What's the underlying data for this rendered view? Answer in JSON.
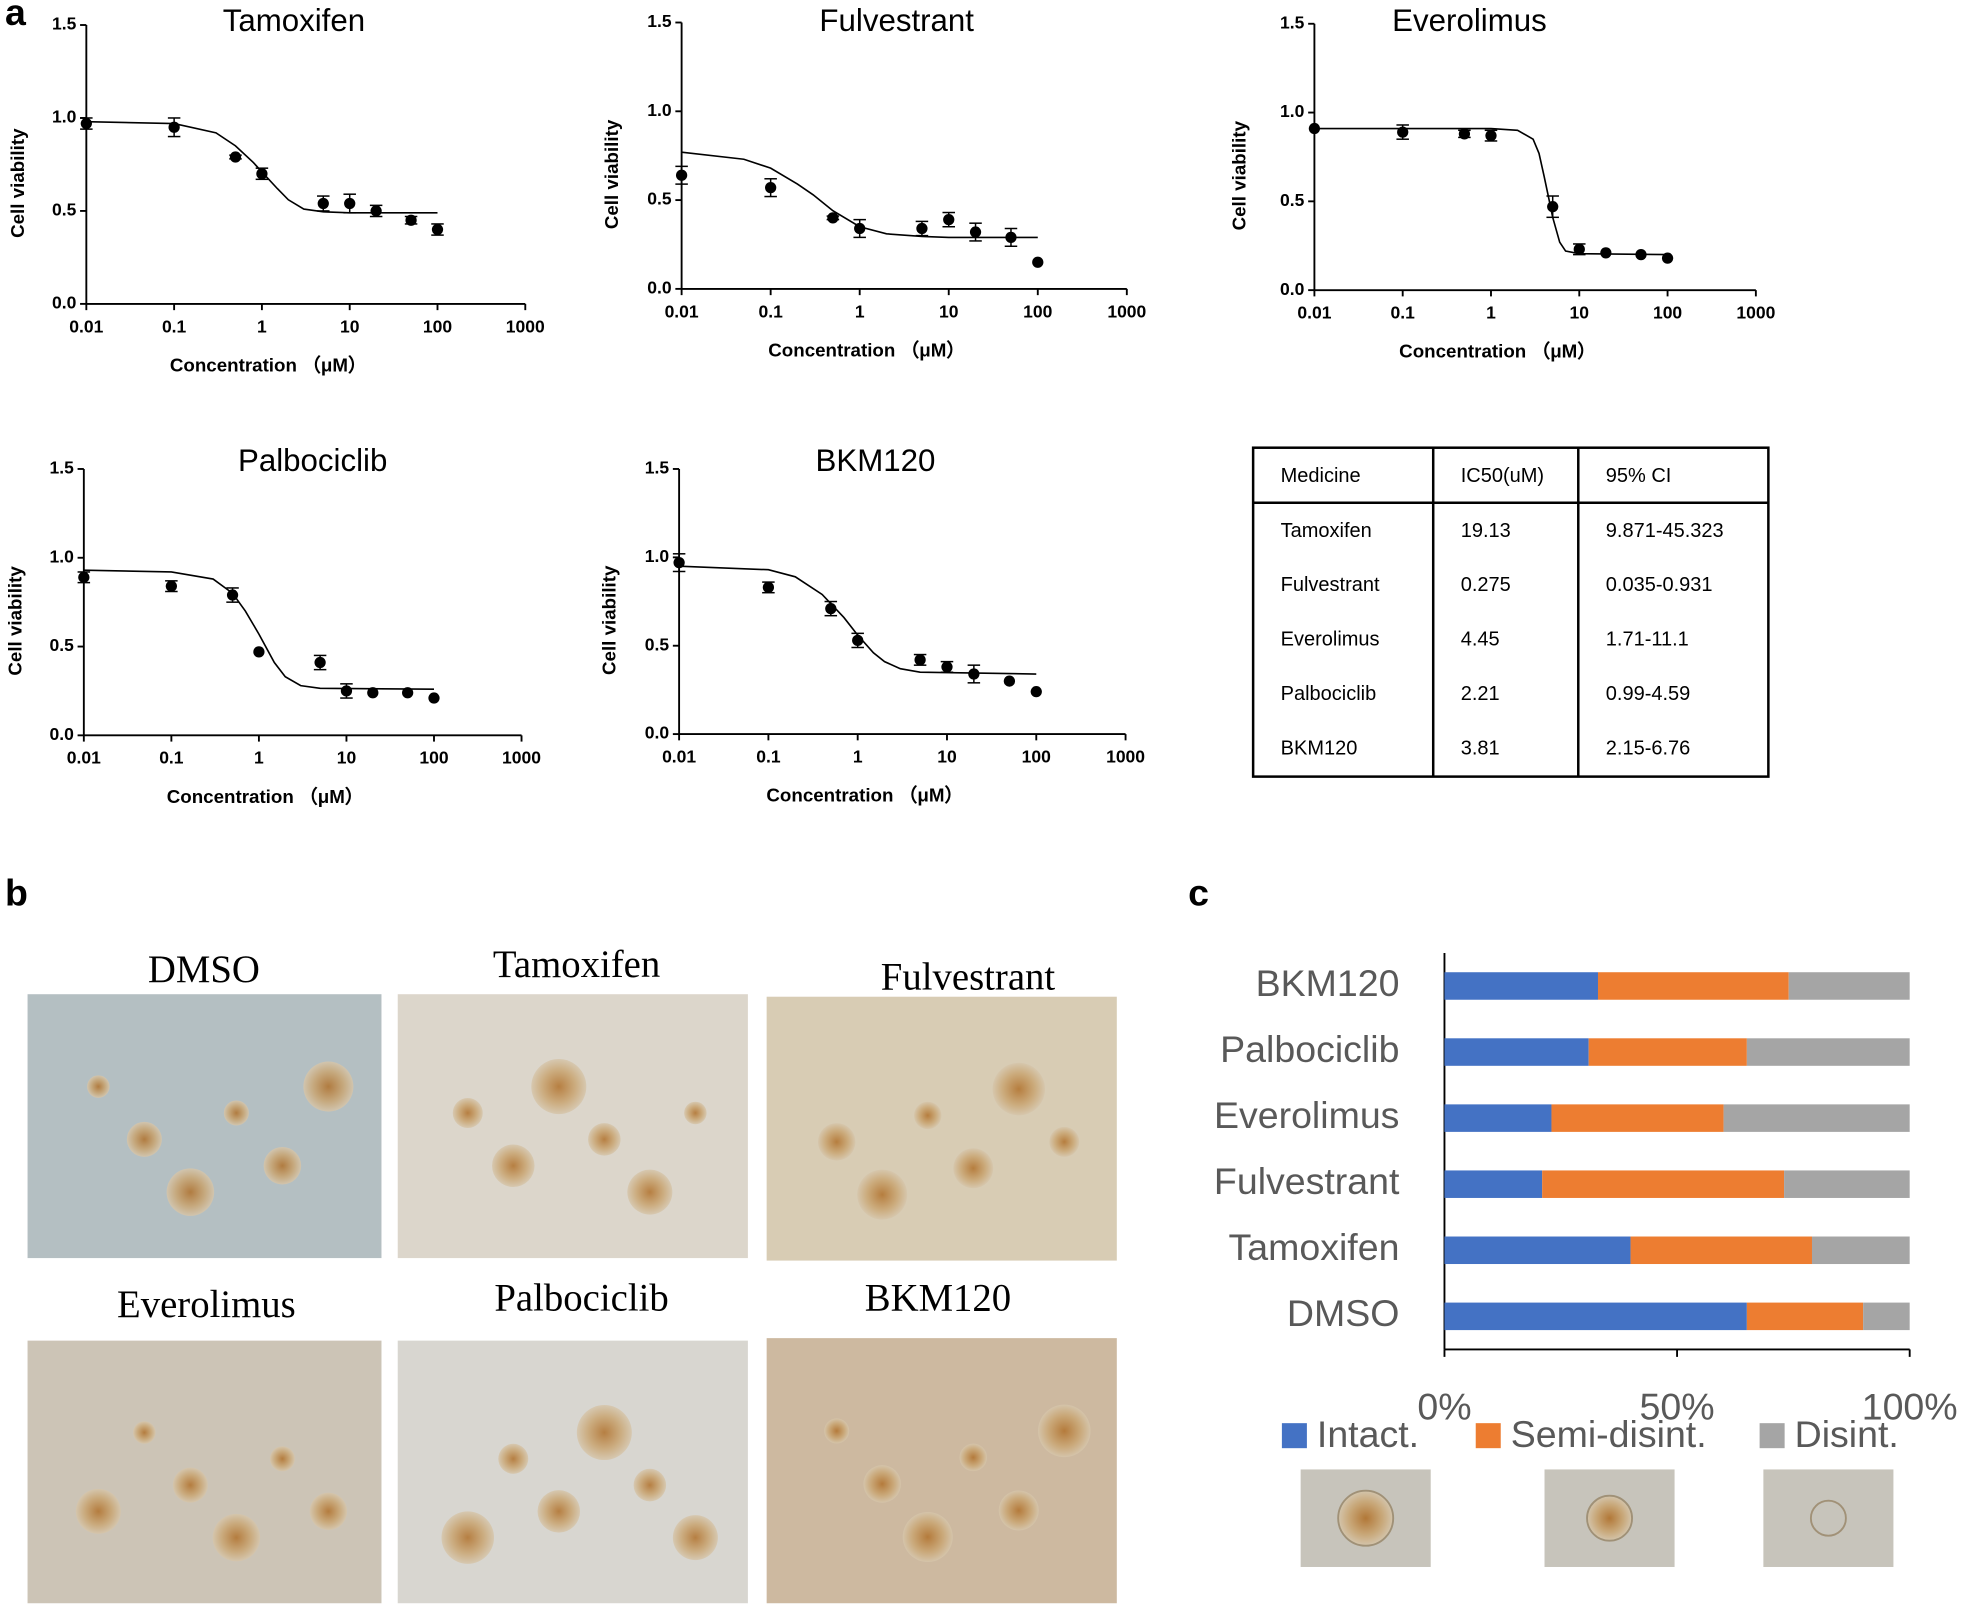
{
  "panels": [
    "a",
    "b",
    "c"
  ],
  "chart_data": [
    {
      "type": "scatter",
      "title": "Tamoxifen",
      "x_label": "Concentration （μM）",
      "y_label": "Cell viability",
      "log_x": true,
      "color": "#000000",
      "x": [
        0.01,
        0.1,
        0.5,
        1,
        5,
        10,
        20,
        50,
        100
      ],
      "values": [
        0.97,
        0.95,
        0.79,
        0.7,
        0.54,
        0.54,
        0.5,
        0.45,
        0.4
      ],
      "errors": [
        0.03,
        0.05,
        0.01,
        0.03,
        0.04,
        0.05,
        0.03,
        0.02,
        0.03
      ],
      "fit": {
        "x": [
          0.01,
          0.1,
          0.3,
          0.5,
          0.8,
          1,
          1.5,
          2,
          3,
          5,
          10,
          100
        ],
        "values": [
          0.98,
          0.97,
          0.92,
          0.85,
          0.76,
          0.71,
          0.62,
          0.56,
          0.51,
          0.495,
          0.49,
          0.49
        ]
      },
      "xlim": [
        0.01,
        1000
      ],
      "xticks": [
        0.01,
        0.1,
        1,
        10,
        100,
        1000
      ],
      "ylim": [
        0,
        1.5
      ],
      "yticks": [
        {
          "value": 0,
          "label": "0.0"
        },
        0.5,
        {
          "value": 1,
          "label": "1.0"
        },
        1.5
      ]
    },
    {
      "type": "scatter",
      "title": "Fulvestrant",
      "x_label": "Concentration （μM）",
      "y_label": "Cell viability",
      "log_x": true,
      "color": "#000000",
      "x": [
        0.01,
        0.1,
        0.5,
        1,
        5,
        10,
        20,
        50,
        100
      ],
      "values": [
        0.64,
        0.57,
        0.4,
        0.34,
        0.34,
        0.39,
        0.32,
        0.29,
        0.15
      ],
      "errors": [
        0.05,
        0.05,
        0.01,
        0.05,
        0.04,
        0.04,
        0.05,
        0.05,
        0
      ],
      "fit": {
        "x": [
          0.01,
          0.05,
          0.1,
          0.2,
          0.3,
          0.5,
          1,
          2,
          5,
          10,
          100
        ],
        "values": [
          0.77,
          0.73,
          0.68,
          0.59,
          0.53,
          0.44,
          0.35,
          0.31,
          0.295,
          0.29,
          0.29
        ]
      },
      "xlim": [
        0.01,
        1000
      ],
      "xticks": [
        0.01,
        0.1,
        1,
        10,
        100,
        1000
      ],
      "ylim": [
        0,
        1.5
      ],
      "yticks": [
        {
          "value": 0,
          "label": "0.0"
        },
        0.5,
        {
          "value": 1,
          "label": "1.0"
        },
        1.5
      ]
    },
    {
      "type": "scatter",
      "title": "Everolimus",
      "x_label": "Concentration （μM）",
      "y_label": "Cell viability",
      "log_x": true,
      "color": "#000000",
      "x": [
        0.01,
        0.1,
        0.5,
        1,
        5,
        10,
        20,
        50,
        100
      ],
      "values": [
        0.91,
        0.89,
        0.88,
        0.87,
        0.47,
        0.23,
        0.21,
        0.2,
        0.18
      ],
      "errors": [
        0,
        0.04,
        0.02,
        0.03,
        0.06,
        0.03,
        0,
        0,
        0
      ],
      "fit": {
        "x": [
          0.01,
          1,
          2,
          3,
          3.5,
          4,
          4.5,
          5,
          6,
          7,
          10,
          100
        ],
        "values": [
          0.91,
          0.91,
          0.9,
          0.85,
          0.77,
          0.64,
          0.52,
          0.41,
          0.27,
          0.22,
          0.205,
          0.2
        ]
      },
      "xlim": [
        0.01,
        1000
      ],
      "xticks": [
        0.01,
        0.1,
        1,
        10,
        100,
        1000
      ],
      "ylim": [
        0,
        1.5
      ],
      "yticks": [
        {
          "value": 0,
          "label": "0.0"
        },
        0.5,
        {
          "value": 1,
          "label": "1.0"
        },
        1.5
      ]
    },
    {
      "type": "scatter",
      "title": "Palbociclib",
      "x_label": "Concentration （μM）",
      "y_label": "Cell viability",
      "log_x": true,
      "color": "#000000",
      "x": [
        0.01,
        0.1,
        0.5,
        1,
        5,
        10,
        20,
        50,
        100
      ],
      "values": [
        0.89,
        0.84,
        0.79,
        0.47,
        0.41,
        0.25,
        0.24,
        0.24,
        0.21
      ],
      "errors": [
        0.03,
        0.03,
        0.04,
        0,
        0.04,
        0.04,
        0,
        0,
        0
      ],
      "fit": {
        "x": [
          0.01,
          0.1,
          0.3,
          0.5,
          0.7,
          1,
          1.5,
          2,
          3,
          5,
          100
        ],
        "values": [
          0.93,
          0.92,
          0.88,
          0.8,
          0.7,
          0.57,
          0.41,
          0.33,
          0.28,
          0.265,
          0.26
        ]
      },
      "xlim": [
        0.01,
        1000
      ],
      "xticks": [
        0.01,
        0.1,
        1,
        10,
        100,
        1000
      ],
      "ylim": [
        0,
        1.5
      ],
      "yticks": [
        {
          "value": 0,
          "label": "0.0"
        },
        0.5,
        {
          "value": 1,
          "label": "1.0"
        },
        1.5
      ]
    },
    {
      "type": "scatter",
      "title": "BKM120",
      "x_label": "Concentration （μM）",
      "y_label": "Cell viability",
      "log_x": true,
      "color": "#000000",
      "x": [
        0.01,
        0.1,
        0.5,
        1,
        5,
        10,
        20,
        50,
        100
      ],
      "values": [
        0.97,
        0.83,
        0.71,
        0.53,
        0.42,
        0.38,
        0.34,
        0.3,
        0.24
      ],
      "errors": [
        0.05,
        0.03,
        0.04,
        0.04,
        0.03,
        0.03,
        0.05,
        0,
        0
      ],
      "fit": {
        "x": [
          0.01,
          0.1,
          0.2,
          0.4,
          0.7,
          1,
          1.5,
          2,
          3,
          5,
          100
        ],
        "values": [
          0.95,
          0.93,
          0.89,
          0.79,
          0.66,
          0.56,
          0.46,
          0.41,
          0.37,
          0.35,
          0.34
        ]
      },
      "xlim": [
        0.01,
        1000
      ],
      "xticks": [
        0.01,
        0.1,
        1,
        10,
        100,
        1000
      ],
      "ylim": [
        0,
        1.5
      ],
      "yticks": [
        {
          "value": 0,
          "label": "0.0"
        },
        0.5,
        {
          "value": 1,
          "label": "1.0"
        },
        1.5
      ]
    },
    {
      "type": "stacked_barh",
      "legend": "bottom",
      "categories": [
        "BKM120",
        "Palbociclib",
        "Everolimus",
        "Fulvestrant",
        "Tamoxifen",
        "DMSO"
      ],
      "series": [
        {
          "name": "Intact.",
          "color": "#4472c4",
          "values": [
            33,
            31,
            23,
            21,
            40,
            65
          ]
        },
        {
          "name": "Semi-disint.",
          "color": "#ed7d31",
          "values": [
            41,
            34,
            37,
            52,
            39,
            25
          ]
        },
        {
          "name": "Disint.",
          "color": "#a5a5a5",
          "values": [
            26,
            35,
            40,
            27,
            21,
            10
          ]
        }
      ],
      "xlim": [
        0,
        100
      ],
      "xticks": [
        {
          "value": 0,
          "label": "0%"
        },
        {
          "value": 50,
          "label": "50%"
        },
        {
          "value": 100,
          "label": "100%"
        }
      ]
    }
  ],
  "table": {
    "header": [
      "Medicine",
      "IC50(uM)",
      "95% CI"
    ],
    "rows": [
      [
        "Tamoxifen",
        "19.13",
        "9.871-45.323"
      ],
      [
        "Fulvestrant",
        "0.275",
        "0.035-0.931"
      ],
      [
        "Everolimus",
        "4.45",
        "1.71-11.1"
      ],
      [
        "Palbociclib",
        "2.21",
        "0.99-4.59"
      ],
      [
        "BKM120",
        "3.81",
        "2.15-6.76"
      ]
    ]
  },
  "photos": [
    "DMSO",
    "Tamoxifen",
    "Fulvestrant",
    "Everolimus",
    "Palbociclib",
    "BKM120"
  ]
}
